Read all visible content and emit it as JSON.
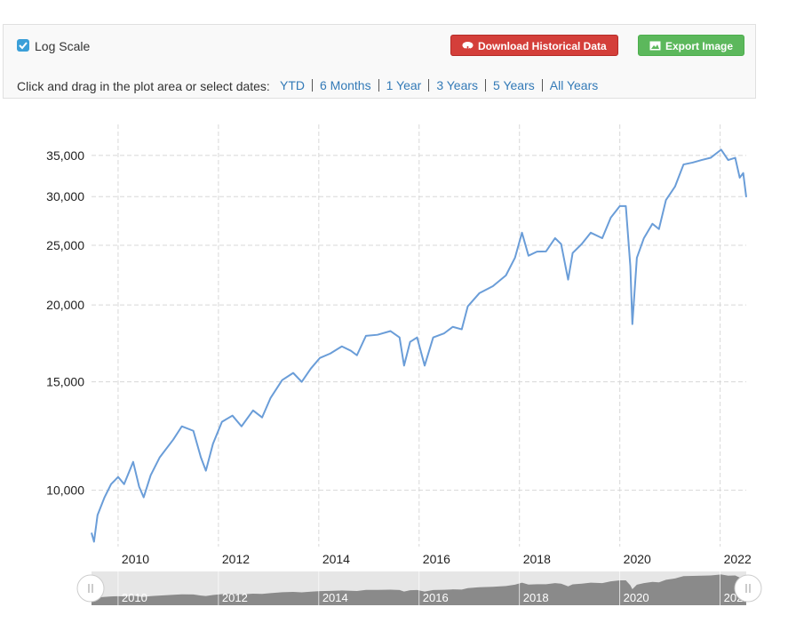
{
  "toolbar": {
    "log_scale_label": "Log Scale",
    "download_button": "Download Historical Data",
    "export_button": "Export Image",
    "prompt": "Click and drag in the plot area or select dates:",
    "ranges": [
      "YTD",
      "6 Months",
      "1 Year",
      "3 Years",
      "5 Years",
      "All Years"
    ]
  },
  "chart_data": {
    "type": "line",
    "log_scale": true,
    "grid": true,
    "color": "#6a9dd8",
    "x": [
      2009.47,
      2009.52,
      2009.59,
      2009.73,
      2009.86,
      2010.0,
      2010.12,
      2010.3,
      2010.42,
      2010.51,
      2010.65,
      2010.83,
      2011.1,
      2011.27,
      2011.5,
      2011.65,
      2011.75,
      2011.89,
      2012.07,
      2012.28,
      2012.46,
      2012.69,
      2012.87,
      2013.04,
      2013.27,
      2013.49,
      2013.66,
      2013.84,
      2014.02,
      2014.23,
      2014.46,
      2014.64,
      2014.76,
      2014.94,
      2015.17,
      2015.43,
      2015.61,
      2015.7,
      2015.82,
      2015.96,
      2016.11,
      2016.28,
      2016.5,
      2016.67,
      2016.85,
      2016.97,
      2017.2,
      2017.47,
      2017.73,
      2017.91,
      2018.05,
      2018.18,
      2018.35,
      2018.53,
      2018.71,
      2018.83,
      2018.97,
      2019.06,
      2019.24,
      2019.42,
      2019.65,
      2019.82,
      2020.0,
      2020.12,
      2020.21,
      2020.25,
      2020.34,
      2020.48,
      2020.65,
      2020.78,
      2020.92,
      2021.1,
      2021.27,
      2021.45,
      2021.63,
      2021.81,
      2022.02,
      2022.16,
      2022.3,
      2022.39,
      2022.46,
      2022.52
    ],
    "values": [
      8530,
      8250,
      9110,
      9740,
      10230,
      10510,
      10230,
      11120,
      10130,
      9740,
      10580,
      11310,
      12090,
      12700,
      12490,
      11310,
      10760,
      11890,
      12920,
      13220,
      12700,
      13480,
      13130,
      14130,
      15100,
      15510,
      15000,
      15760,
      16400,
      16680,
      17130,
      16850,
      16570,
      17820,
      17890,
      18140,
      17710,
      15940,
      17420,
      17710,
      15940,
      17710,
      17990,
      18430,
      18260,
      19900,
      20900,
      21460,
      22340,
      23860,
      26210,
      24050,
      24420,
      24440,
      25680,
      25120,
      21990,
      24290,
      25120,
      26210,
      25680,
      27730,
      28950,
      28950,
      23110,
      18620,
      23860,
      25680,
      27100,
      26570,
      29620,
      31140,
      33830,
      34070,
      34400,
      34690,
      35760,
      34400,
      34690,
      32200,
      32760,
      29930
    ],
    "xlim": [
      2009.47,
      2022.52
    ],
    "ylim": [
      8100,
      39300
    ],
    "xticks": [
      2010,
      2012,
      2014,
      2016,
      2018,
      2020,
      2022
    ],
    "yticks": [
      {
        "value": 10000,
        "label": "10,000"
      },
      {
        "value": 15000,
        "label": "15,000"
      },
      {
        "value": 20000,
        "label": "20,000"
      },
      {
        "value": 25000,
        "label": "25,000"
      },
      {
        "value": 30000,
        "label": "30,000"
      },
      {
        "value": 35000,
        "label": "35,000"
      }
    ]
  }
}
